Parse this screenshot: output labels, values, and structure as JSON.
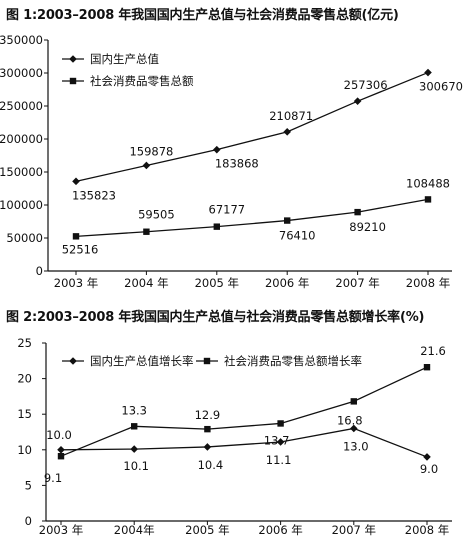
{
  "chart_data": [
    {
      "type": "line",
      "title": "图 1:2003–2008 年我国国内生产总值与社会消费品零售总额(亿元)",
      "xlabel": "",
      "ylabel": "",
      "categories": [
        "2003 年",
        "2004 年",
        "2005 年",
        "2006 年",
        "2007 年",
        "2008 年"
      ],
      "yticks": [
        "0",
        "50000",
        "100000",
        "150000",
        "200000",
        "250000",
        "300000",
        "350000"
      ],
      "ylim": [
        0,
        350000
      ],
      "grid": false,
      "legend": "top-left",
      "series": [
        {
          "name": "国内生产总值",
          "marker": "diamond",
          "values": [
            135823,
            159878,
            183868,
            210871,
            257306,
            300670
          ],
          "labels": [
            "135823",
            "159878",
            "183868",
            "210871",
            "257306",
            "300670"
          ]
        },
        {
          "name": "社会消费品零售总额",
          "marker": "square",
          "values": [
            52516,
            59505,
            67177,
            76410,
            89210,
            108488
          ],
          "labels": [
            "52516",
            "59505",
            "67177",
            "76410",
            "89210",
            "108488"
          ]
        }
      ]
    },
    {
      "type": "line",
      "title": "图 2:2003–2008 年我国国内生产总值与社会消费品零售总额增长率(%)",
      "xlabel": "",
      "ylabel": "",
      "categories": [
        "2003 年",
        "2004年",
        "2005 年",
        "2006 年",
        "2007 年",
        "2008 年"
      ],
      "yticks": [
        "0",
        "5",
        "10",
        "15",
        "20",
        "25"
      ],
      "ylim": [
        0,
        25
      ],
      "grid": false,
      "legend": "top-left",
      "series": [
        {
          "name": "国内生产总值增长率",
          "marker": "diamond",
          "values": [
            10.0,
            10.1,
            10.4,
            11.1,
            13.0,
            9.0
          ],
          "labels": [
            "10.0",
            "10.1",
            "10.4",
            "11.1",
            "13.0",
            "9.0"
          ]
        },
        {
          "name": "社会消费品零售总额增长率",
          "marker": "square",
          "values": [
            9.1,
            13.3,
            12.9,
            13.7,
            16.8,
            21.6
          ],
          "labels": [
            "9.1",
            "13.3",
            "12.9",
            "13.7",
            "16.8",
            "21.6"
          ]
        }
      ]
    }
  ]
}
